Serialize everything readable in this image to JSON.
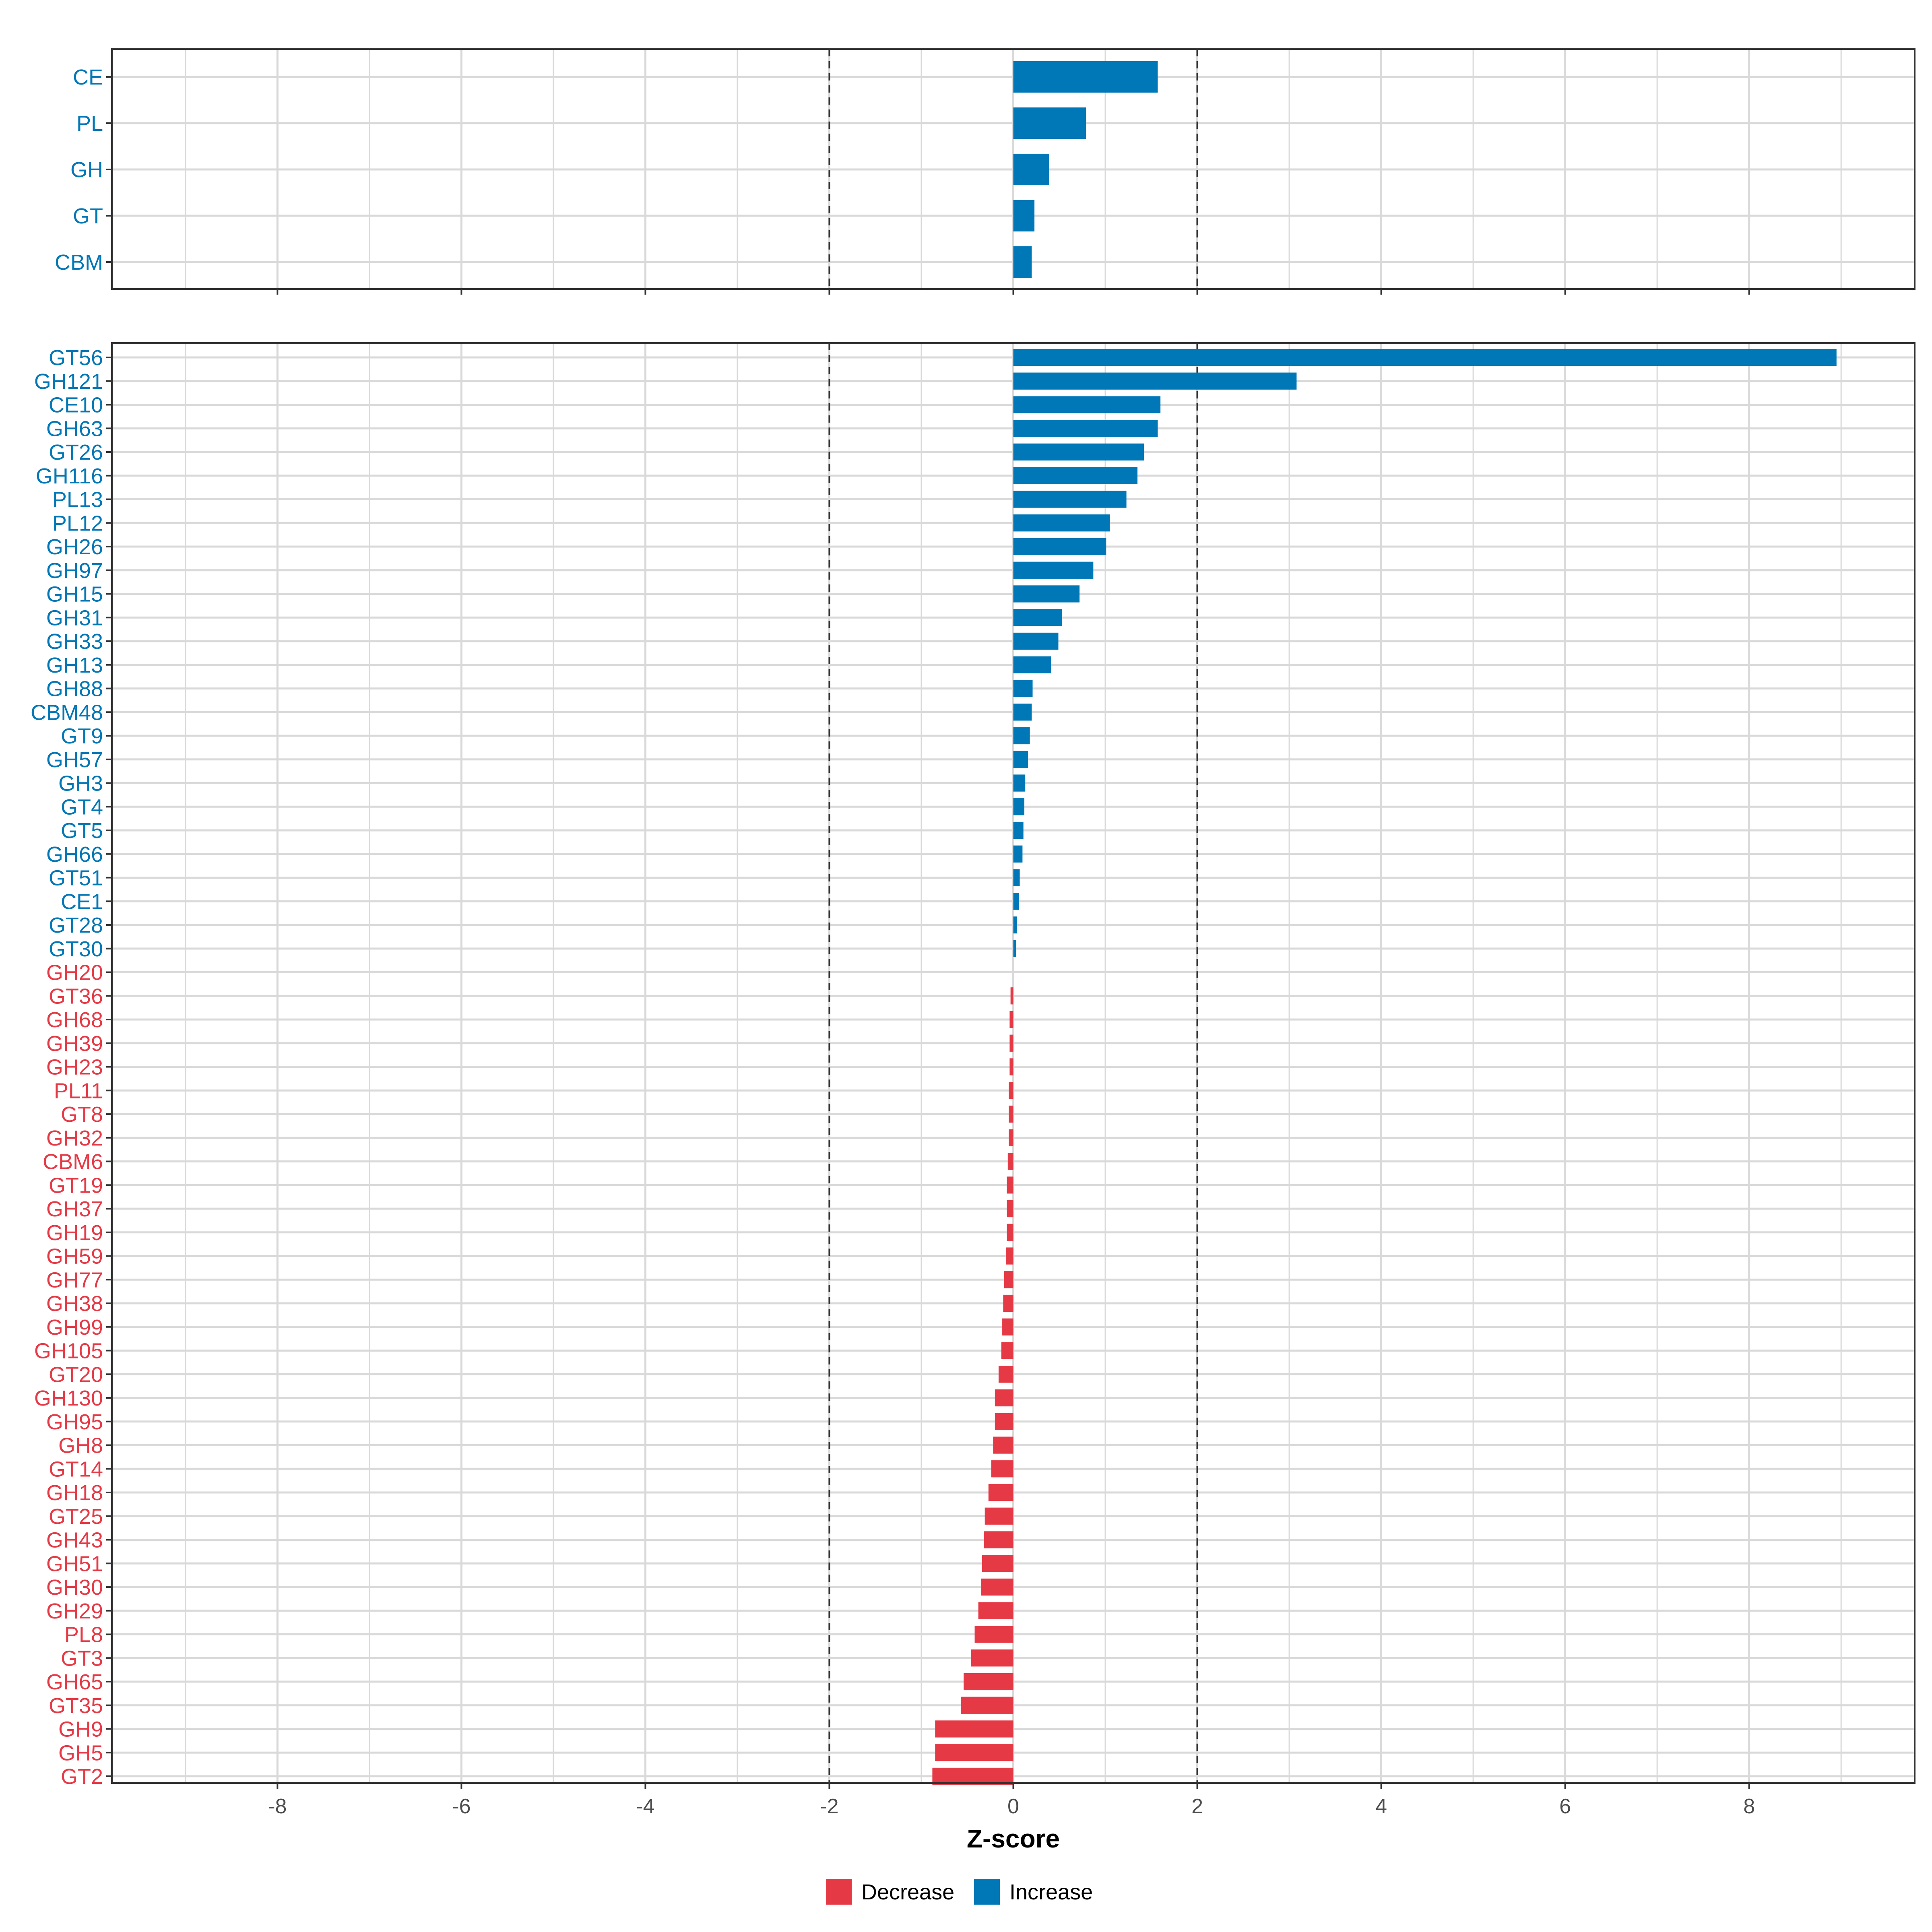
{
  "chart_data": [
    {
      "type": "bar",
      "orientation": "horizontal",
      "panel": "class",
      "categories": [
        "CE",
        "PL",
        "GH",
        "GT",
        "CBM"
      ],
      "values": [
        1.57,
        0.79,
        0.39,
        0.23,
        0.2
      ],
      "xlim": [
        -9.8,
        9.8
      ],
      "reference_lines": [
        -2,
        2
      ],
      "grid": true
    },
    {
      "type": "bar",
      "orientation": "horizontal",
      "panel": "family",
      "categories": [
        "GT56",
        "GH121",
        "CE10",
        "GH63",
        "GT26",
        "GH116",
        "PL13",
        "PL12",
        "GH26",
        "GH97",
        "GH15",
        "GH31",
        "GH33",
        "GH13",
        "GH88",
        "CBM48",
        "GT9",
        "GH57",
        "GH3",
        "GT4",
        "GT5",
        "GH66",
        "GT51",
        "CE1",
        "GT28",
        "GT30",
        "GH20",
        "GT36",
        "GH68",
        "GH39",
        "GH23",
        "PL11",
        "GT8",
        "GH32",
        "CBM6",
        "GT19",
        "GH37",
        "GH19",
        "GH59",
        "GH77",
        "GH38",
        "GH99",
        "GH105",
        "GT20",
        "GH130",
        "GH95",
        "GH8",
        "GT14",
        "GH18",
        "GT25",
        "GH43",
        "GH51",
        "GH30",
        "GH29",
        "PL8",
        "GT3",
        "GH65",
        "GT35",
        "GH9",
        "GH5",
        "GT2"
      ],
      "values": [
        8.95,
        3.08,
        1.6,
        1.57,
        1.42,
        1.35,
        1.23,
        1.05,
        1.01,
        0.87,
        0.72,
        0.53,
        0.49,
        0.41,
        0.21,
        0.2,
        0.18,
        0.16,
        0.13,
        0.12,
        0.11,
        0.1,
        0.07,
        0.06,
        0.04,
        0.03,
        0.0,
        -0.03,
        -0.04,
        -0.04,
        -0.04,
        -0.05,
        -0.05,
        -0.05,
        -0.06,
        -0.07,
        -0.07,
        -0.07,
        -0.08,
        -0.1,
        -0.11,
        -0.12,
        -0.13,
        -0.16,
        -0.2,
        -0.2,
        -0.22,
        -0.24,
        -0.27,
        -0.31,
        -0.32,
        -0.34,
        -0.35,
        -0.38,
        -0.42,
        -0.46,
        -0.54,
        -0.57,
        -0.85,
        -0.85,
        -0.88
      ],
      "xlim": [
        -9.8,
        9.8
      ],
      "xticks": [
        -8,
        -6,
        -4,
        -2,
        0,
        2,
        4,
        6,
        8
      ],
      "xtick_labels": [
        "-8",
        "-6",
        "-4",
        "-2",
        "0",
        "2",
        "4",
        "6",
        "8"
      ],
      "xlabel": "Z-score",
      "reference_lines": [
        -2,
        2
      ],
      "grid": true
    }
  ],
  "legend": {
    "position": "bottom",
    "items": [
      {
        "label": "Decrease",
        "color": "#E63946"
      },
      {
        "label": "Increase",
        "color": "#0077B6"
      }
    ]
  },
  "colors": {
    "increase": "#0077B6",
    "decrease": "#E63946",
    "grid": "#D9D9D9",
    "reference_line": "#333333",
    "panel_border": "#333333"
  }
}
